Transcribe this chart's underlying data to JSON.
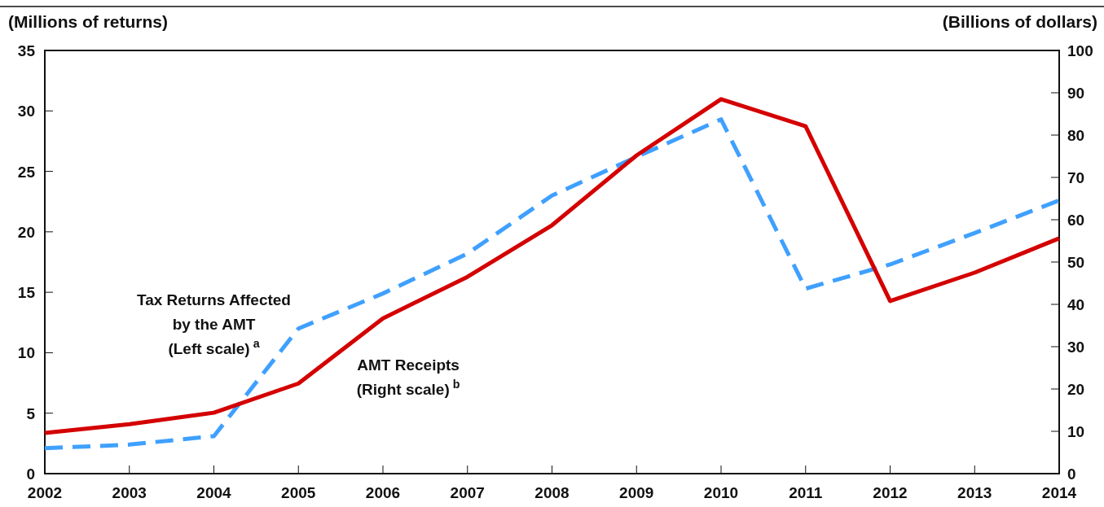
{
  "chart_data": {
    "type": "line",
    "ylabel": "(Millions of returns)",
    "y2label": "(Billions of dollars)",
    "x": [
      2002,
      2003,
      2004,
      2005,
      2006,
      2007,
      2008,
      2009,
      2010,
      2011,
      2012,
      2013,
      2014
    ],
    "xlim": [
      2002,
      2014
    ],
    "xticks": [
      2002,
      2003,
      2004,
      2005,
      2006,
      2007,
      2008,
      2009,
      2010,
      2011,
      2012,
      2013,
      2014
    ],
    "ylim": [
      0,
      35
    ],
    "yticks": [
      0,
      5,
      10,
      15,
      20,
      25,
      30,
      35
    ],
    "y2lim": [
      0,
      100
    ],
    "y2ticks": [
      0,
      10,
      20,
      30,
      40,
      50,
      60,
      70,
      80,
      90,
      100
    ],
    "series": [
      {
        "name": "Tax Returns Affected\nby the AMT\n(Left scale)$^{a}$",
        "color": "#3fa0ff",
        "line_style": "dashed",
        "values": [
          2.1,
          2.4,
          3.1,
          12.0,
          14.9,
          18.2,
          23.0,
          26.2,
          29.3,
          15.3,
          17.3,
          19.9,
          22.6
        ]
      },
      {
        "name": "AMT Receipts\n(Right scale)$^{b}$",
        "color": "#d40000",
        "line_style": "solid",
        "axis": "y2",
        "values": [
          9.6,
          11.7,
          14.4,
          21.3,
          36.7,
          46.5,
          58.7,
          75.2,
          88.5,
          82.1,
          40.8,
          47.5,
          55.6
        ]
      }
    ],
    "grid": false
  }
}
